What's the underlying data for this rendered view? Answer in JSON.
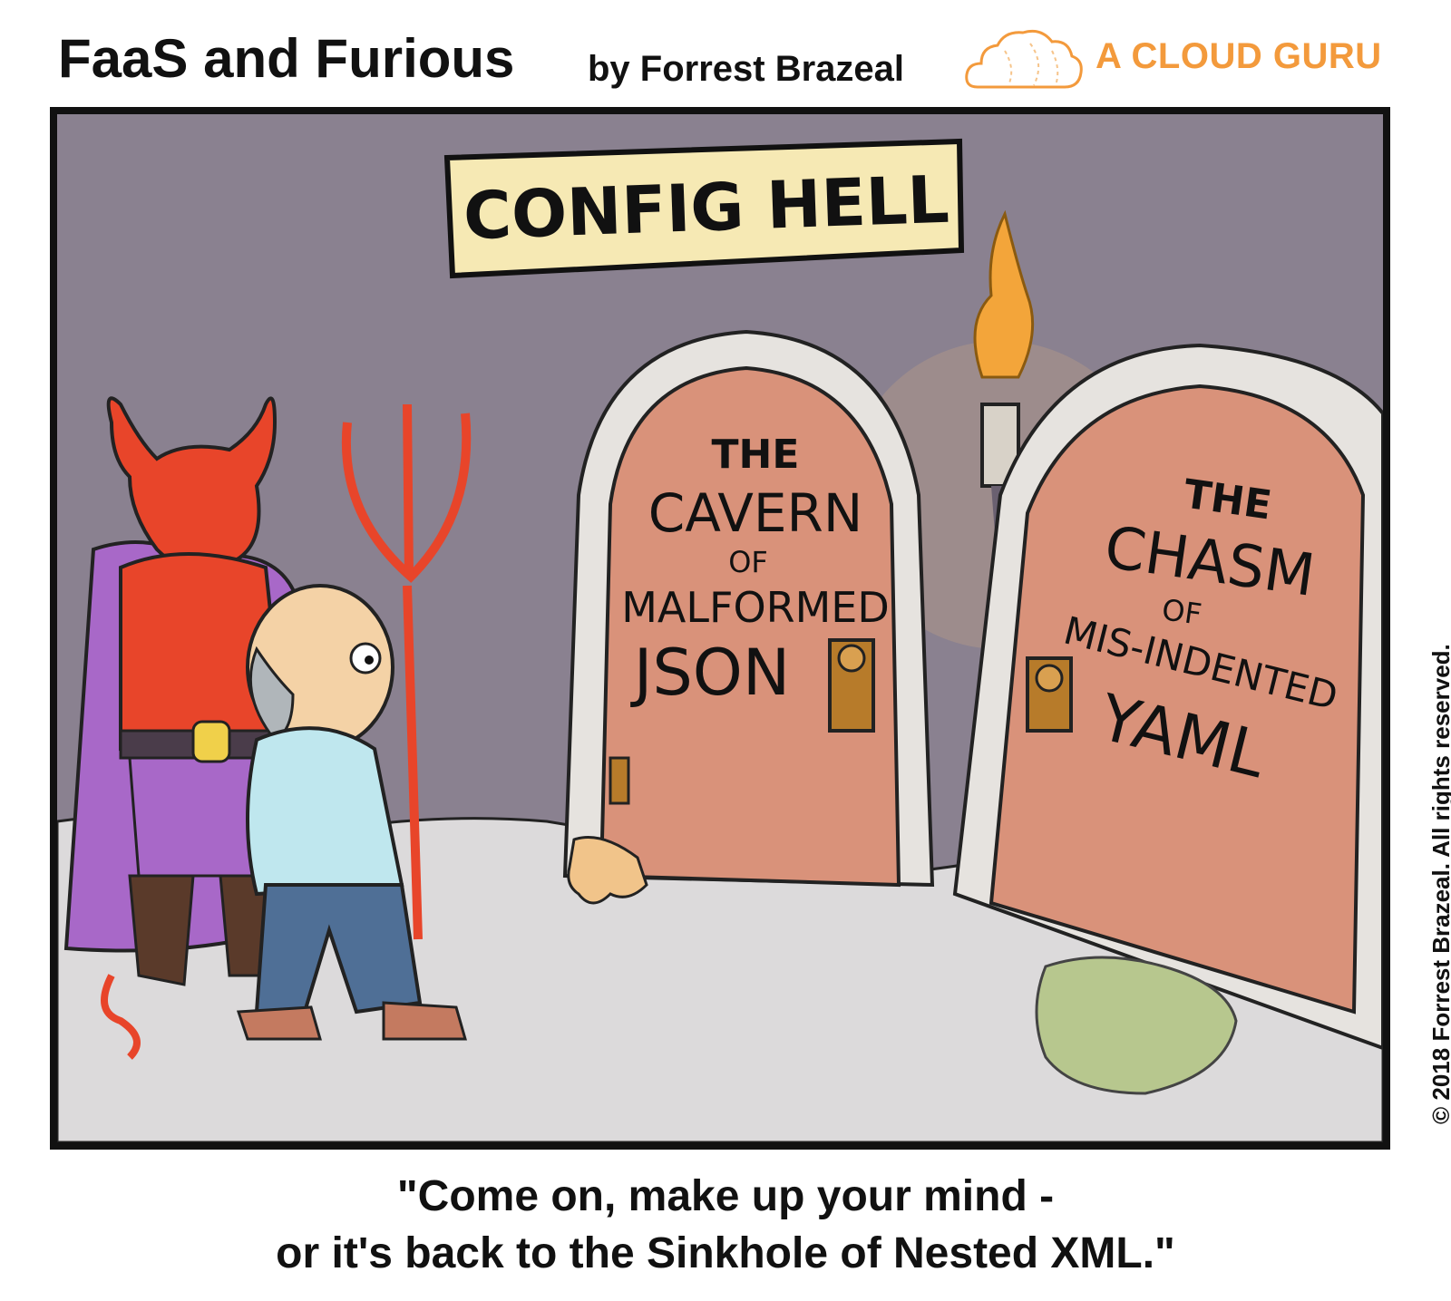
{
  "header": {
    "title": "FaaS and Furious",
    "byline": "by Forrest Brazeal",
    "brand": "A CLOUD GURU",
    "brand_color": "#f39a3c"
  },
  "comic": {
    "sign": "CONFIG HELL",
    "left_door": {
      "line1": "THE",
      "line2": "CAVERN",
      "line3": "OF",
      "line4": "MALFORMED",
      "line5": "JSON"
    },
    "right_door": {
      "line1": "THE",
      "line2": "CHASM",
      "line3": "OF",
      "line4": "MIS-INDENTED",
      "line5": "YAML"
    },
    "colors": {
      "wall": "#8a8190",
      "floor": "#dcdadb",
      "door": "#d9927a",
      "stone": "#e6e3df",
      "devil": "#e8452a",
      "cape": "#a868c8",
      "sign": "#f6e9b4",
      "flame": "#f3a53a"
    }
  },
  "caption": {
    "line1": "\"Come on, make up your mind -",
    "line2": "or it's back to the Sinkhole of Nested XML.\""
  },
  "copyright": "© 2018 Forrest Brazeal. All rights reserved."
}
